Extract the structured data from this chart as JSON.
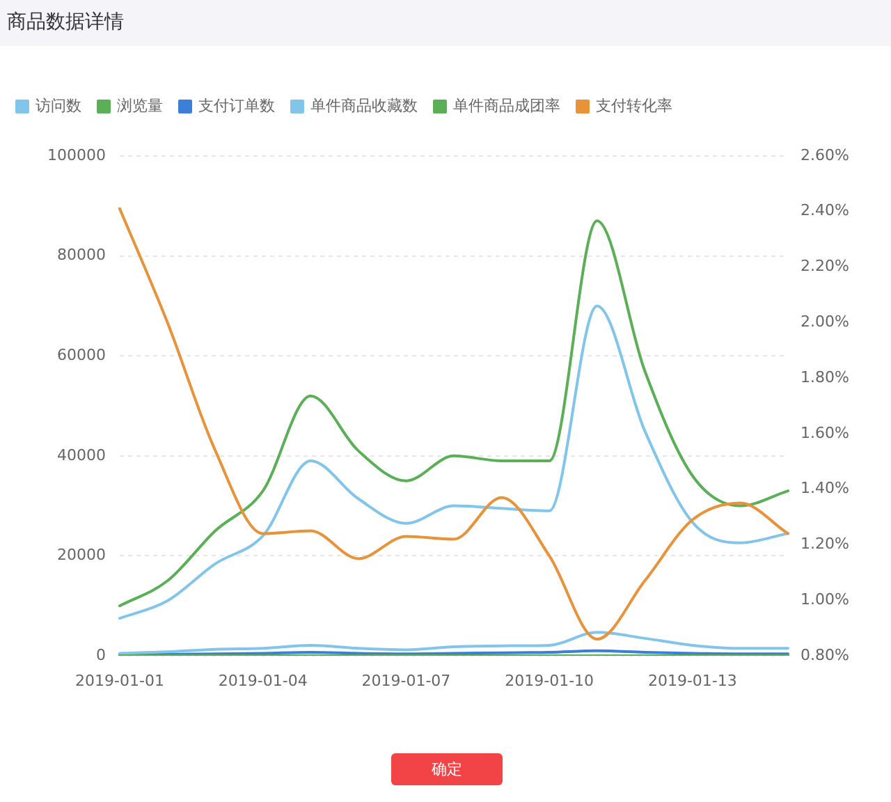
{
  "chart_data": {
    "type": "line",
    "title": "商品数据详情",
    "categories": [
      "2019-01-01",
      null,
      null,
      "2019-01-04",
      null,
      null,
      "2019-01-07",
      null,
      null,
      "2019-01-10",
      null,
      null,
      "2019-01-13",
      null,
      null
    ],
    "series": [
      {
        "name": "访问数",
        "color": "#82c5ea",
        "values": [
          7500,
          11000,
          18400,
          24000,
          39000,
          31400,
          26500,
          30000,
          29500,
          29000,
          70000,
          45000,
          26700,
          22600,
          24500
        ]
      },
      {
        "name": "浏览量",
        "color": "#5aaf57",
        "values": [
          10000,
          15000,
          25000,
          33000,
          52000,
          41000,
          35000,
          40000,
          39000,
          39000,
          87000,
          57000,
          36000,
          30000,
          33000
        ]
      },
      {
        "name": "支付订单数",
        "color": "#3b7fd9",
        "values": [
          200,
          300,
          400,
          500,
          700,
          500,
          400,
          500,
          600,
          700,
          1000,
          700,
          500,
          400,
          400
        ]
      },
      {
        "name": "单件商品收藏数",
        "color": "#82c5ea",
        "values": [
          500,
          800,
          1300,
          1500,
          2100,
          1500,
          1200,
          1800,
          2000,
          2100,
          4700,
          3500,
          2100,
          1500,
          1500
        ]
      },
      {
        "name": "单件商品成团率",
        "color": "#5aaf57",
        "values": [
          0,
          0,
          0,
          0,
          0,
          0,
          0,
          0,
          0,
          0,
          0,
          0,
          0,
          0,
          0
        ]
      },
      {
        "name": "支付转化率",
        "color": "#e8923a",
        "axis": "y2",
        "values": [
          2.41,
          2.0,
          1.54,
          1.24,
          1.25,
          1.15,
          1.23,
          1.22,
          1.37,
          1.16,
          0.86,
          1.07,
          1.29,
          1.35,
          1.24
        ]
      }
    ],
    "ylim": [
      0,
      100000
    ],
    "yticks": [
      0,
      20000,
      40000,
      60000,
      80000,
      100000
    ],
    "y2lim": [
      0.8,
      2.6
    ],
    "y2ticks": [
      {
        "value": 0.8,
        "label": "0.80%"
      },
      {
        "value": 1.0,
        "label": "1.00%"
      },
      {
        "value": 1.2,
        "label": "1.20%"
      },
      {
        "value": 1.4,
        "label": "1.40%"
      },
      {
        "value": 1.6,
        "label": "1.60%"
      },
      {
        "value": 1.8,
        "label": "1.80%"
      },
      {
        "value": 2.0,
        "label": "2.00%"
      },
      {
        "value": 2.2,
        "label": "2.20%"
      },
      {
        "value": 2.4,
        "label": "2.40%"
      },
      {
        "value": 2.6,
        "label": "2.60%"
      }
    ],
    "grid": "y",
    "legend": "top left",
    "annotations": [
      "确定"
    ]
  }
}
